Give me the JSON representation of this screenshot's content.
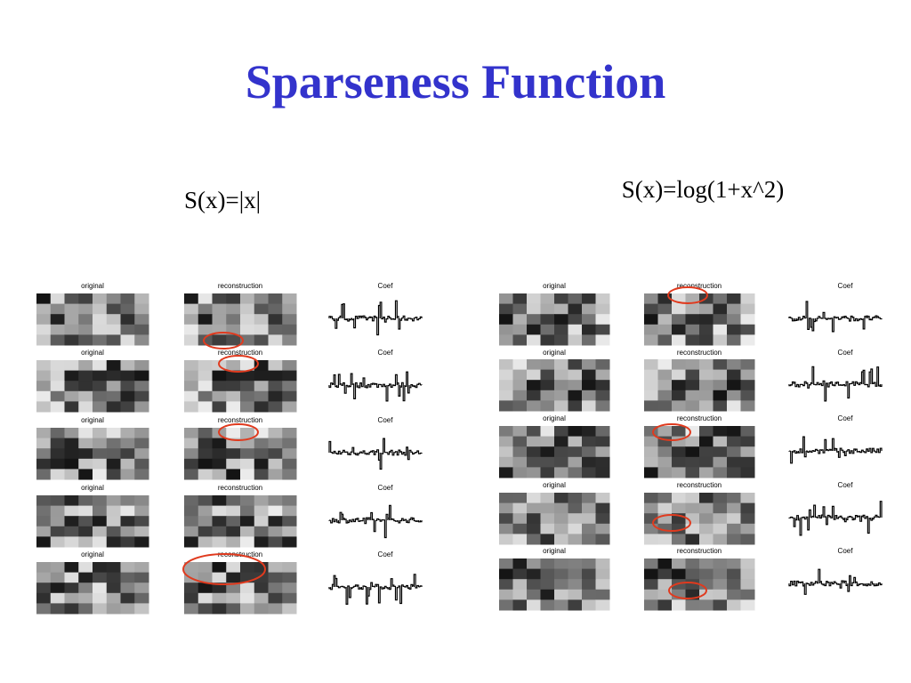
{
  "title": "Sparseness Function",
  "columns": [
    {
      "heading": "S(x)=|x|",
      "rows": [
        {
          "original": "original",
          "reconstruction": "reconstruction",
          "coef": "Coef"
        },
        {
          "original": "original",
          "reconstruction": "reconstruction",
          "coef": "Coef"
        },
        {
          "original": "original",
          "reconstruction": "reconstruction",
          "coef": "Coef"
        },
        {
          "original": "original",
          "reconstruction": "reconstruction",
          "coef": "Coef"
        },
        {
          "original": "original",
          "reconstruction": "reconstruction",
          "coef": "Coef"
        }
      ]
    },
    {
      "heading": "S(x)=log(1+x^2)",
      "rows": [
        {
          "original": "original",
          "reconstruction": "reconstruction",
          "coef": "Coef"
        },
        {
          "original": "original",
          "reconstruction": "reconstruction",
          "coef": "Coef"
        },
        {
          "original": "original",
          "reconstruction": "reconstruction",
          "coef": "Coef"
        },
        {
          "original": "original",
          "reconstruction": "reconstruction",
          "coef": "Coef"
        },
        {
          "original": "original",
          "reconstruction": "reconstruction",
          "coef": "Coef"
        }
      ]
    }
  ]
}
